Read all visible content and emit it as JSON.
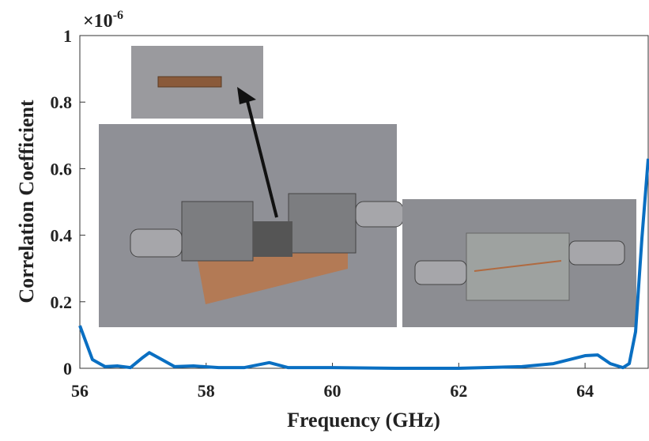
{
  "chart_data": {
    "type": "line",
    "x_label": "Frequency (GHz)",
    "y_label": "Correlation Coefficient",
    "y_multiplier": {
      "base": "×10",
      "exponent": "-6"
    },
    "x": [
      56.0,
      56.2,
      56.4,
      56.6,
      56.8,
      57.0,
      57.1,
      57.3,
      57.5,
      57.8,
      58.2,
      58.6,
      59.0,
      59.3,
      60.0,
      61.0,
      62.0,
      63.0,
      63.5,
      64.0,
      64.2,
      64.4,
      64.6,
      64.7,
      64.8,
      64.9,
      65.0
    ],
    "series": [
      {
        "color": "#0a6fc2",
        "values": [
          0.128,
          0.026,
          0.005,
          0.007,
          0.002,
          0.033,
          0.047,
          0.026,
          0.005,
          0.007,
          0.002,
          0.002,
          0.017,
          0.002,
          0.002,
          0.0,
          0.0,
          0.005,
          0.014,
          0.038,
          0.04,
          0.014,
          0.002,
          0.014,
          0.11,
          0.39,
          0.63
        ]
      }
    ],
    "xlim": [
      56,
      65
    ],
    "ylim": [
      0,
      1
    ],
    "xticks": [
      56,
      58,
      60,
      62,
      64
    ],
    "yticks": [
      0,
      0.2,
      0.4,
      0.6,
      0.8,
      1
    ],
    "grid": false
  }
}
